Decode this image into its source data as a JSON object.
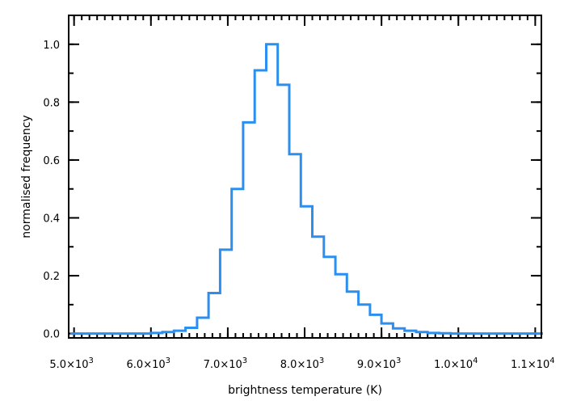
{
  "chart_data": {
    "type": "histogram",
    "title": "",
    "xlabel": "brightness temperature (K)",
    "ylabel": "normalised frequency",
    "xlim": [
      4930,
      11080
    ],
    "ylim": [
      -0.015,
      1.1
    ],
    "grid": false,
    "legend": "none",
    "line_color": "#2b8ff0",
    "x_ticks": [
      {
        "value": 5000,
        "mantissa": "5.0",
        "exponent": "3"
      },
      {
        "value": 6000,
        "mantissa": "6.0",
        "exponent": "3"
      },
      {
        "value": 7000,
        "mantissa": "7.0",
        "exponent": "3"
      },
      {
        "value": 8000,
        "mantissa": "8.0",
        "exponent": "3"
      },
      {
        "value": 9000,
        "mantissa": "9.0",
        "exponent": "3"
      },
      {
        "value": 10000,
        "mantissa": "1.0",
        "exponent": "4"
      },
      {
        "value": 11000,
        "mantissa": "1.1",
        "exponent": "4"
      }
    ],
    "times_symbol": "×10",
    "x_minor_step": 100,
    "y_ticks": [
      {
        "value": 0.0,
        "label": "0.0"
      },
      {
        "value": 0.2,
        "label": "0.2"
      },
      {
        "value": 0.4,
        "label": "0.4"
      },
      {
        "value": 0.6,
        "label": "0.6"
      },
      {
        "value": 0.8,
        "label": "0.8"
      },
      {
        "value": 1.0,
        "label": "1.0"
      }
    ],
    "y_minor_step": 0.1,
    "bin_width": 150,
    "bin_edges_start": 4950,
    "values": [
      0.0,
      0.0,
      0.0,
      0.0,
      0.0,
      0.0,
      0.0,
      0.002,
      0.005,
      0.01,
      0.02,
      0.055,
      0.14,
      0.29,
      0.5,
      0.73,
      0.91,
      1.0,
      0.86,
      0.62,
      0.44,
      0.335,
      0.265,
      0.205,
      0.145,
      0.1,
      0.065,
      0.035,
      0.018,
      0.01,
      0.005,
      0.002,
      0.001,
      0.0,
      0.0,
      0.0,
      0.0,
      0.0,
      0.0,
      0.0,
      0.0
    ]
  }
}
